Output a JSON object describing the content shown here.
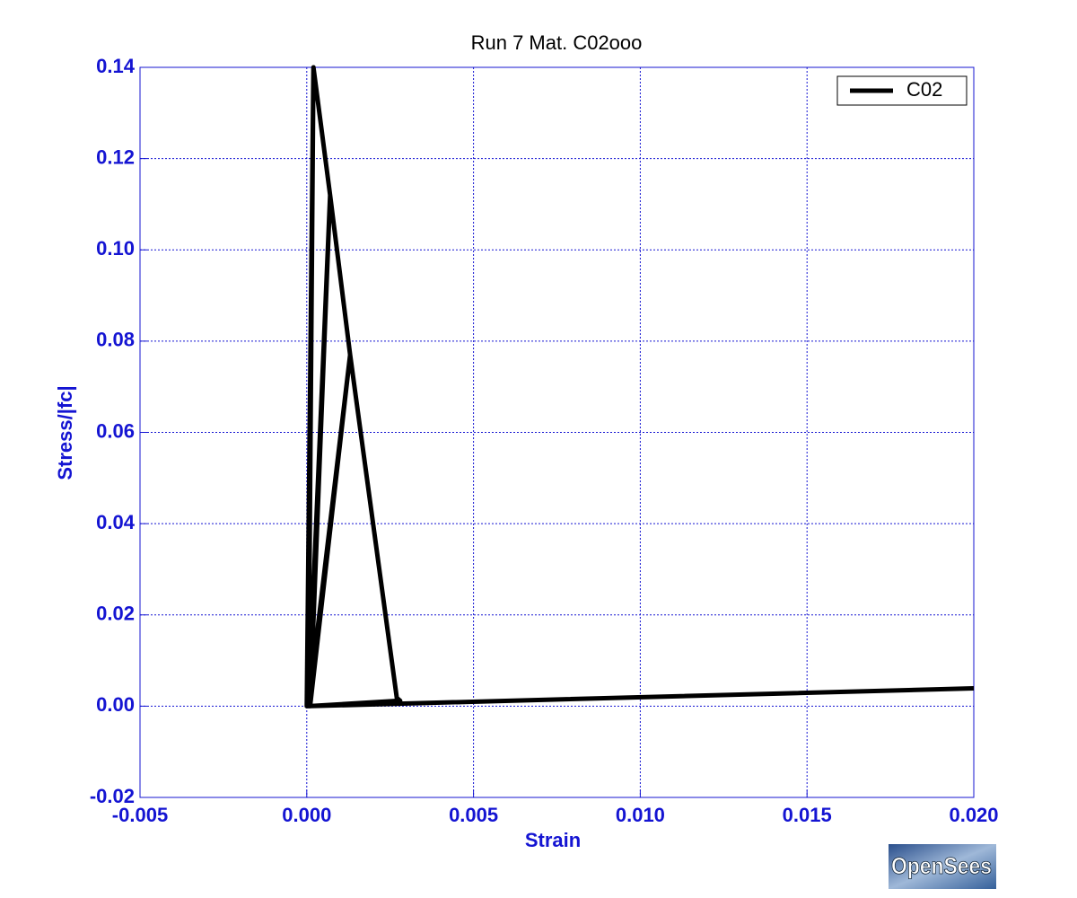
{
  "chart_data": {
    "type": "line",
    "title": "Run 7   Mat. C02ooo",
    "xlabel": "Strain",
    "ylabel": "Stress/|fc|",
    "x": [
      0,
      0.0002,
      0.0007,
      0.0013,
      0.0027,
      0.0028,
      5e-05,
      0.0013,
      0.0001,
      0.0007,
      5e-05,
      0.0002,
      0,
      0.02
    ],
    "series": [
      {
        "name": "C02",
        "color": "#000000",
        "values": [
          0,
          0.14,
          0.112,
          0.077,
          0.0018,
          0.0012,
          0,
          0.077,
          0,
          0.112,
          0,
          0.14,
          0,
          0.0039
        ]
      }
    ],
    "xlim": [
      -0.005,
      0.02
    ],
    "xticks": [
      -0.005,
      {
        "value": 0,
        "label": "0.000"
      },
      0.005,
      {
        "value": 0.01,
        "label": "0.010"
      },
      0.015,
      {
        "value": 0.02,
        "label": "0.020"
      }
    ],
    "ylim": [
      -0.02,
      0.14
    ],
    "yticks": [
      -0.02,
      {
        "value": 0,
        "label": "0.00"
      },
      0.02,
      0.04,
      0.06,
      0.08,
      {
        "value": 0.1,
        "label": "0.10"
      },
      0.12,
      0.14
    ],
    "grid": true,
    "legend": "upper right",
    "logo": "OpenSees"
  }
}
